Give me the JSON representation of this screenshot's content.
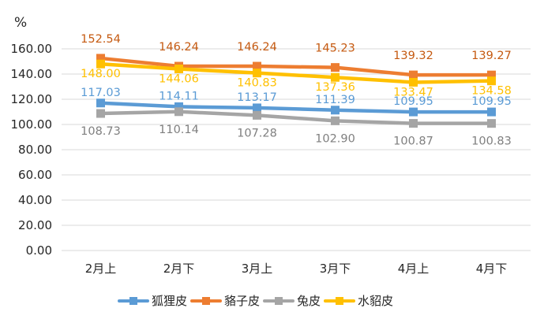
{
  "chart_data": {
    "type": "line",
    "title": "",
    "xlabel": "",
    "ylabel": "%",
    "ylim": [
      0,
      160
    ],
    "yticks": [
      "0.00",
      "20.00",
      "40.00",
      "60.00",
      "80.00",
      "100.00",
      "120.00",
      "140.00",
      "160.00"
    ],
    "grid": true,
    "legend_position": "bottom",
    "categories": [
      "2月上",
      "2月下",
      "3月上",
      "3月下",
      "4月上",
      "4月下"
    ],
    "series": [
      {
        "name": "狐狸皮",
        "color": "#5B9BD5",
        "label_color": "#5B9BD5",
        "values": [
          117.03,
          114.11,
          113.17,
          111.39,
          109.95,
          109.95
        ]
      },
      {
        "name": "貉子皮",
        "color": "#ED7D31",
        "label_color": "#C55A11",
        "values": [
          152.54,
          146.24,
          146.24,
          145.23,
          139.32,
          139.27
        ]
      },
      {
        "name": "兔皮",
        "color": "#A5A5A5",
        "label_color": "#7F7F7F",
        "values": [
          108.73,
          110.14,
          107.28,
          102.9,
          100.87,
          100.83
        ]
      },
      {
        "name": "水貂皮",
        "color": "#FFC000",
        "label_color": "#FFC000",
        "values": [
          148.0,
          144.06,
          140.83,
          137.36,
          133.47,
          134.58
        ]
      }
    ]
  },
  "axis": {
    "unit_label": "%"
  },
  "legend": {
    "items": [
      {
        "label": "狐狸皮"
      },
      {
        "label": "貉子皮"
      },
      {
        "label": "兔皮"
      },
      {
        "label": "水貂皮"
      }
    ]
  }
}
